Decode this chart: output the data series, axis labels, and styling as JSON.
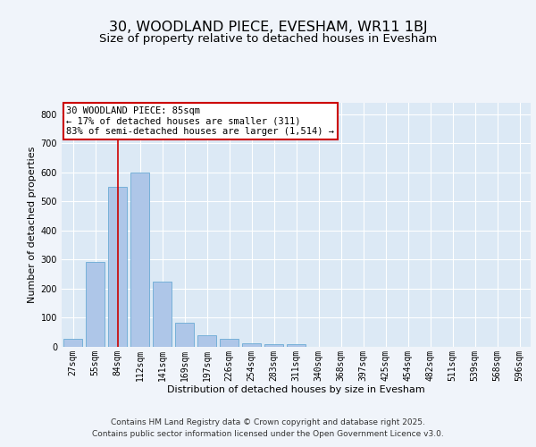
{
  "title": "30, WOODLAND PIECE, EVESHAM, WR11 1BJ",
  "subtitle": "Size of property relative to detached houses in Evesham",
  "xlabel": "Distribution of detached houses by size in Evesham",
  "ylabel": "Number of detached properties",
  "categories": [
    "27sqm",
    "55sqm",
    "84sqm",
    "112sqm",
    "141sqm",
    "169sqm",
    "197sqm",
    "226sqm",
    "254sqm",
    "283sqm",
    "311sqm",
    "340sqm",
    "368sqm",
    "397sqm",
    "425sqm",
    "454sqm",
    "482sqm",
    "511sqm",
    "539sqm",
    "568sqm",
    "596sqm"
  ],
  "values": [
    25,
    290,
    550,
    600,
    225,
    82,
    37,
    25,
    12,
    8,
    7,
    0,
    0,
    0,
    0,
    0,
    0,
    0,
    0,
    0,
    0
  ],
  "bar_color": "#aec6e8",
  "bar_edge_color": "#6aaad4",
  "bg_color": "#dce9f5",
  "fig_bg_color": "#f0f4fa",
  "grid_color": "#ffffff",
  "vline_x": 2,
  "vline_color": "#cc0000",
  "annotation_text": "30 WOODLAND PIECE: 85sqm\n← 17% of detached houses are smaller (311)\n83% of semi-detached houses are larger (1,514) →",
  "annotation_box_edgecolor": "#cc0000",
  "annotation_box_facecolor": "#ffffff",
  "ylim": [
    0,
    840
  ],
  "yticks": [
    0,
    100,
    200,
    300,
    400,
    500,
    600,
    700,
    800
  ],
  "footer_line1": "Contains HM Land Registry data © Crown copyright and database right 2025.",
  "footer_line2": "Contains public sector information licensed under the Open Government Licence v3.0.",
  "title_fontsize": 11.5,
  "subtitle_fontsize": 9.5,
  "axis_label_fontsize": 8,
  "tick_fontsize": 7,
  "annotation_fontsize": 7.5,
  "footer_fontsize": 6.5
}
